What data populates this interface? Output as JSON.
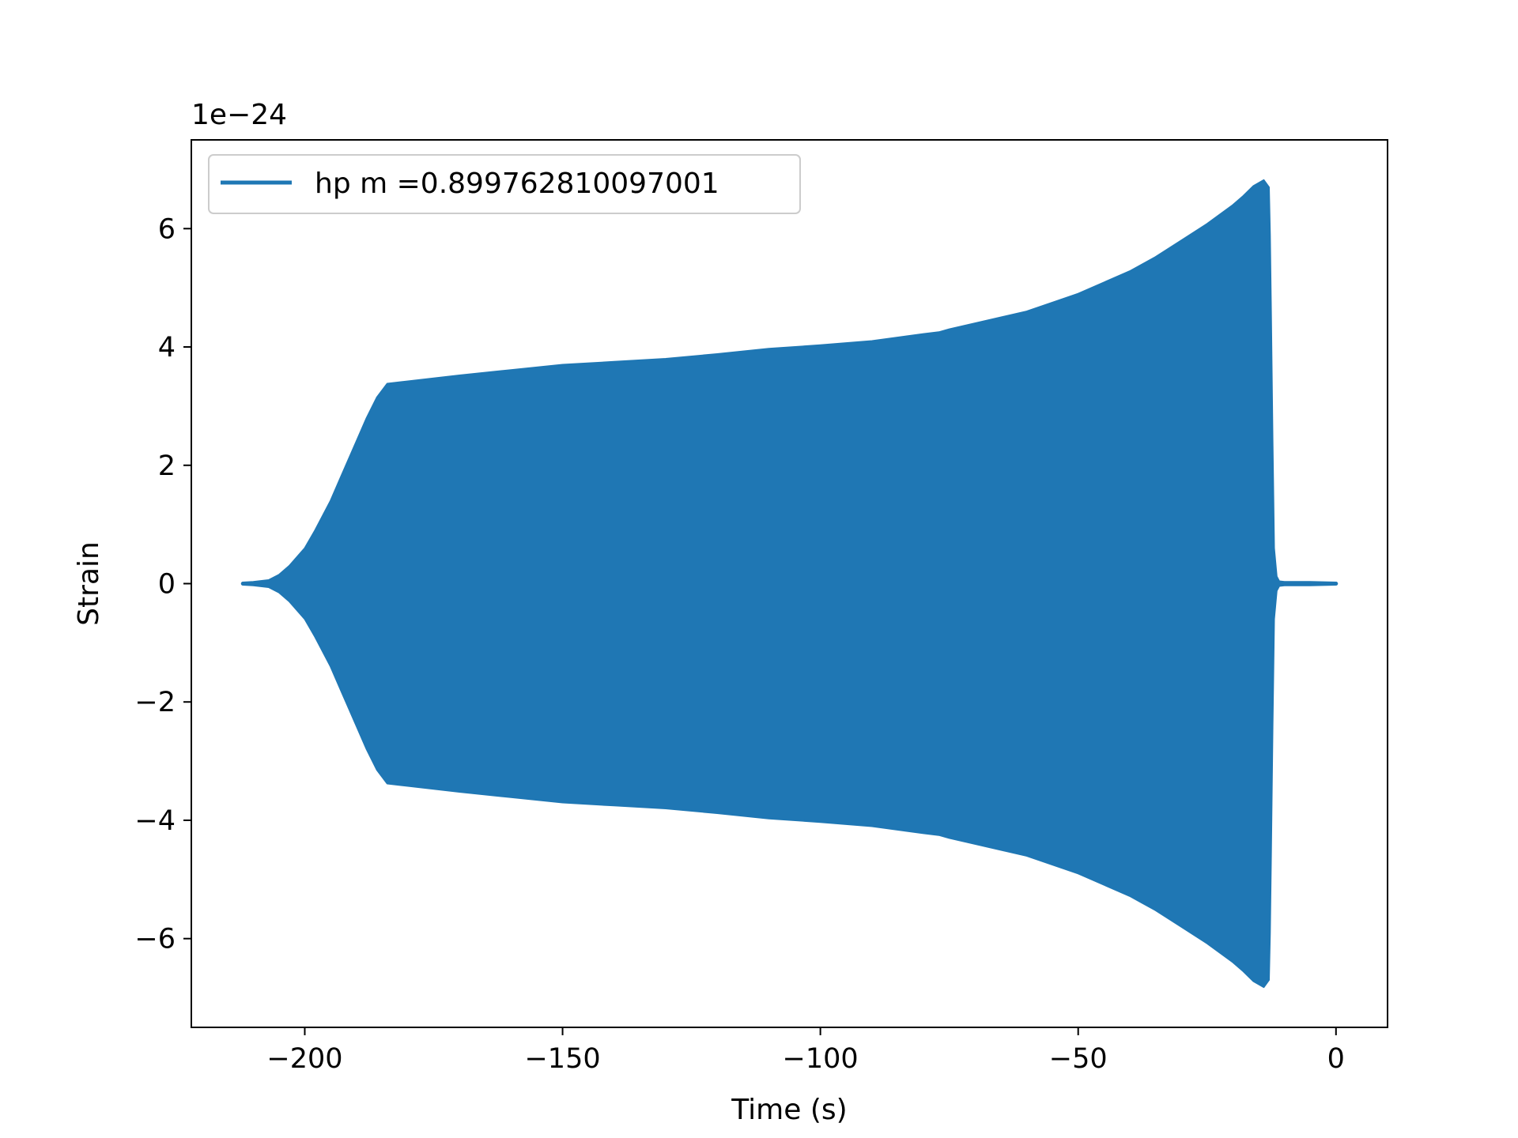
{
  "chart_data": {
    "type": "line",
    "title": "",
    "xlabel": "Time (s)",
    "ylabel": "Strain",
    "y_offset_text": "1e−24",
    "xlim": [
      -222,
      10
    ],
    "ylim": [
      -7.5,
      7.5
    ],
    "x_ticks": [
      -200,
      -150,
      -100,
      -50,
      0
    ],
    "x_tick_labels": [
      "−200",
      "−150",
      "−100",
      "−50",
      "0"
    ],
    "y_ticks": [
      -6,
      -4,
      -2,
      0,
      2,
      4,
      6
    ],
    "y_tick_labels": [
      "−6",
      "−4",
      "−2",
      "0",
      "2",
      "4",
      "6"
    ],
    "grid": false,
    "legend": {
      "position": "upper-left"
    },
    "series": [
      {
        "name": "hp m =0.899762810097001",
        "color": "#1f77b4",
        "envelope": {
          "x": [
            -212,
            -210,
            -207,
            -205,
            -203,
            -200,
            -198,
            -195,
            -193,
            -190,
            -188,
            -186,
            -184,
            -180,
            -175,
            -170,
            -160,
            -150,
            -140,
            -130,
            -120,
            -110,
            -100,
            -90,
            -80,
            -77,
            -75,
            -70,
            -60,
            -50,
            -40,
            -35,
            -30,
            -25,
            -20,
            -18,
            -16,
            -14,
            -13,
            -12.8,
            -12.6,
            -12.3,
            -12,
            -11.5,
            -11,
            -10,
            -5,
            0
          ],
          "upper": [
            0.02,
            0.03,
            0.06,
            0.15,
            0.3,
            0.6,
            0.9,
            1.4,
            1.8,
            2.4,
            2.8,
            3.15,
            3.38,
            3.42,
            3.47,
            3.52,
            3.61,
            3.7,
            3.75,
            3.8,
            3.88,
            3.97,
            4.03,
            4.1,
            4.22,
            4.25,
            4.3,
            4.4,
            4.6,
            4.9,
            5.28,
            5.52,
            5.8,
            6.08,
            6.4,
            6.55,
            6.72,
            6.82,
            6.7,
            5.9,
            4.6,
            2.4,
            0.6,
            0.12,
            0.04,
            0.03,
            0.03,
            0.02
          ],
          "lower": [
            -0.02,
            -0.03,
            -0.06,
            -0.15,
            -0.3,
            -0.6,
            -0.9,
            -1.4,
            -1.8,
            -2.4,
            -2.8,
            -3.15,
            -3.38,
            -3.42,
            -3.47,
            -3.52,
            -3.61,
            -3.7,
            -3.75,
            -3.8,
            -3.88,
            -3.97,
            -4.03,
            -4.1,
            -4.22,
            -4.25,
            -4.3,
            -4.4,
            -4.6,
            -4.9,
            -5.28,
            -5.52,
            -5.8,
            -6.08,
            -6.4,
            -6.55,
            -6.72,
            -6.82,
            -6.7,
            -5.9,
            -4.6,
            -2.4,
            -0.6,
            -0.12,
            -0.04,
            -0.03,
            -0.03,
            -0.02
          ]
        }
      }
    ]
  }
}
